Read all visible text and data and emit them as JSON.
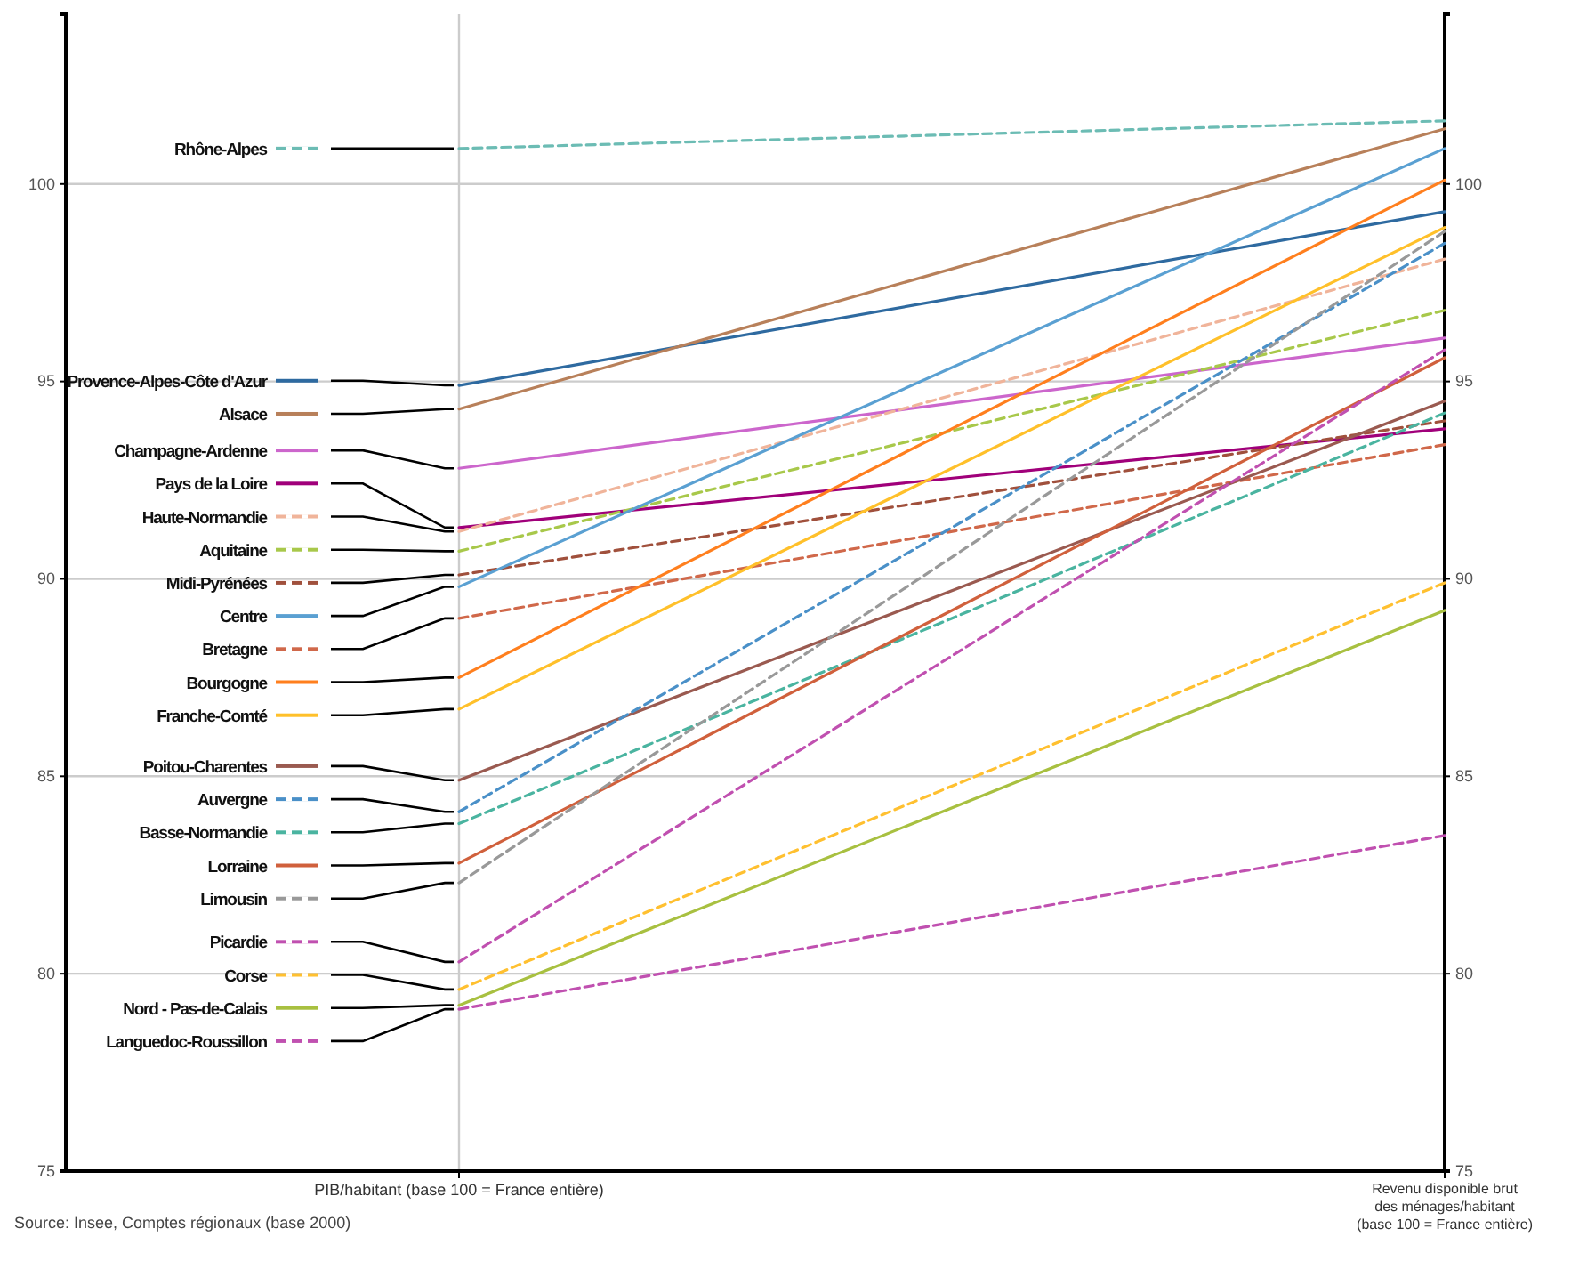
{
  "chart_data": {
    "type": "line",
    "categories": [
      "PIB/habitant (base 100 = France entière)",
      "Revenu disponible brut des ménages/habitant (base 100 = France entière)"
    ],
    "ylim": [
      75,
      104.3
    ],
    "yticks": [
      75,
      80,
      85,
      90,
      95,
      100
    ],
    "y2lim": [
      75,
      104.3
    ],
    "y2ticks": [
      75,
      80,
      85,
      90,
      95,
      100
    ],
    "grid": true,
    "legend": "left",
    "marker": "none",
    "annotations": [
      "Source: Insee, Comptes régionaux (base 2000)"
    ],
    "series": [
      {
        "name": "Rhône-Alpes",
        "color": "#6cbcb4",
        "line_style": "dashed",
        "values": [
          100.9,
          101.6
        ]
      },
      {
        "name": "Provence-Alpes-Côte d'Azur",
        "color": "#2e6aa0",
        "line_style": "solid",
        "values": [
          94.9,
          99.3
        ]
      },
      {
        "name": "Alsace",
        "color": "#b8805a",
        "line_style": "solid",
        "values": [
          94.3,
          101.4
        ]
      },
      {
        "name": "Champagne-Ardenne",
        "color": "#cc66cc",
        "line_style": "solid",
        "values": [
          92.8,
          96.1
        ]
      },
      {
        "name": "Pays de la Loire",
        "color": "#a0007a",
        "line_style": "solid",
        "values": [
          91.3,
          93.8
        ]
      },
      {
        "name": "Haute-Normandie",
        "color": "#f0b49a",
        "line_style": "dashed",
        "values": [
          91.2,
          98.1
        ]
      },
      {
        "name": "Aquitaine",
        "color": "#a8c84a",
        "line_style": "dashed",
        "values": [
          90.7,
          96.8
        ]
      },
      {
        "name": "Midi-Pyrénées",
        "color": "#a0503c",
        "line_style": "dashed",
        "values": [
          90.1,
          94.0
        ]
      },
      {
        "name": "Centre",
        "color": "#5aa0d2",
        "line_style": "solid",
        "values": [
          89.8,
          100.9
        ]
      },
      {
        "name": "Bretagne",
        "color": "#d0684a",
        "line_style": "dashed",
        "values": [
          89.0,
          93.4
        ]
      },
      {
        "name": "Bourgogne",
        "color": "#ff7f1e",
        "line_style": "solid",
        "values": [
          87.5,
          100.1
        ]
      },
      {
        "name": "Franche-Comté",
        "color": "#ffc02a",
        "line_style": "solid",
        "values": [
          86.7,
          98.9
        ]
      },
      {
        "name": "Poitou-Charentes",
        "color": "#9a5a50",
        "line_style": "solid",
        "values": [
          84.9,
          94.5
        ]
      },
      {
        "name": "Auvergne",
        "color": "#4a90c8",
        "line_style": "dashed",
        "values": [
          84.1,
          98.5
        ]
      },
      {
        "name": "Basse-Normandie",
        "color": "#4ab4a0",
        "line_style": "dashed",
        "values": [
          83.8,
          94.2
        ]
      },
      {
        "name": "Lorraine",
        "color": "#d0603c",
        "line_style": "solid",
        "values": [
          82.8,
          95.6
        ]
      },
      {
        "name": "Limousin",
        "color": "#999999",
        "line_style": "dashed",
        "values": [
          82.3,
          98.8
        ]
      },
      {
        "name": "Picardie",
        "color": "#c050b0",
        "line_style": "dashed",
        "values": [
          80.3,
          95.8
        ]
      },
      {
        "name": "Corse",
        "color": "#ffc030",
        "line_style": "dashed",
        "values": [
          79.6,
          89.9
        ]
      },
      {
        "name": "Nord - Pas-de-Calais",
        "color": "#a8c040",
        "line_style": "solid",
        "values": [
          79.2,
          89.2
        ]
      },
      {
        "name": "Languedoc-Roussillon",
        "color": "#c050b0",
        "line_style": "dashed",
        "values": [
          79.1,
          83.5
        ]
      }
    ]
  }
}
